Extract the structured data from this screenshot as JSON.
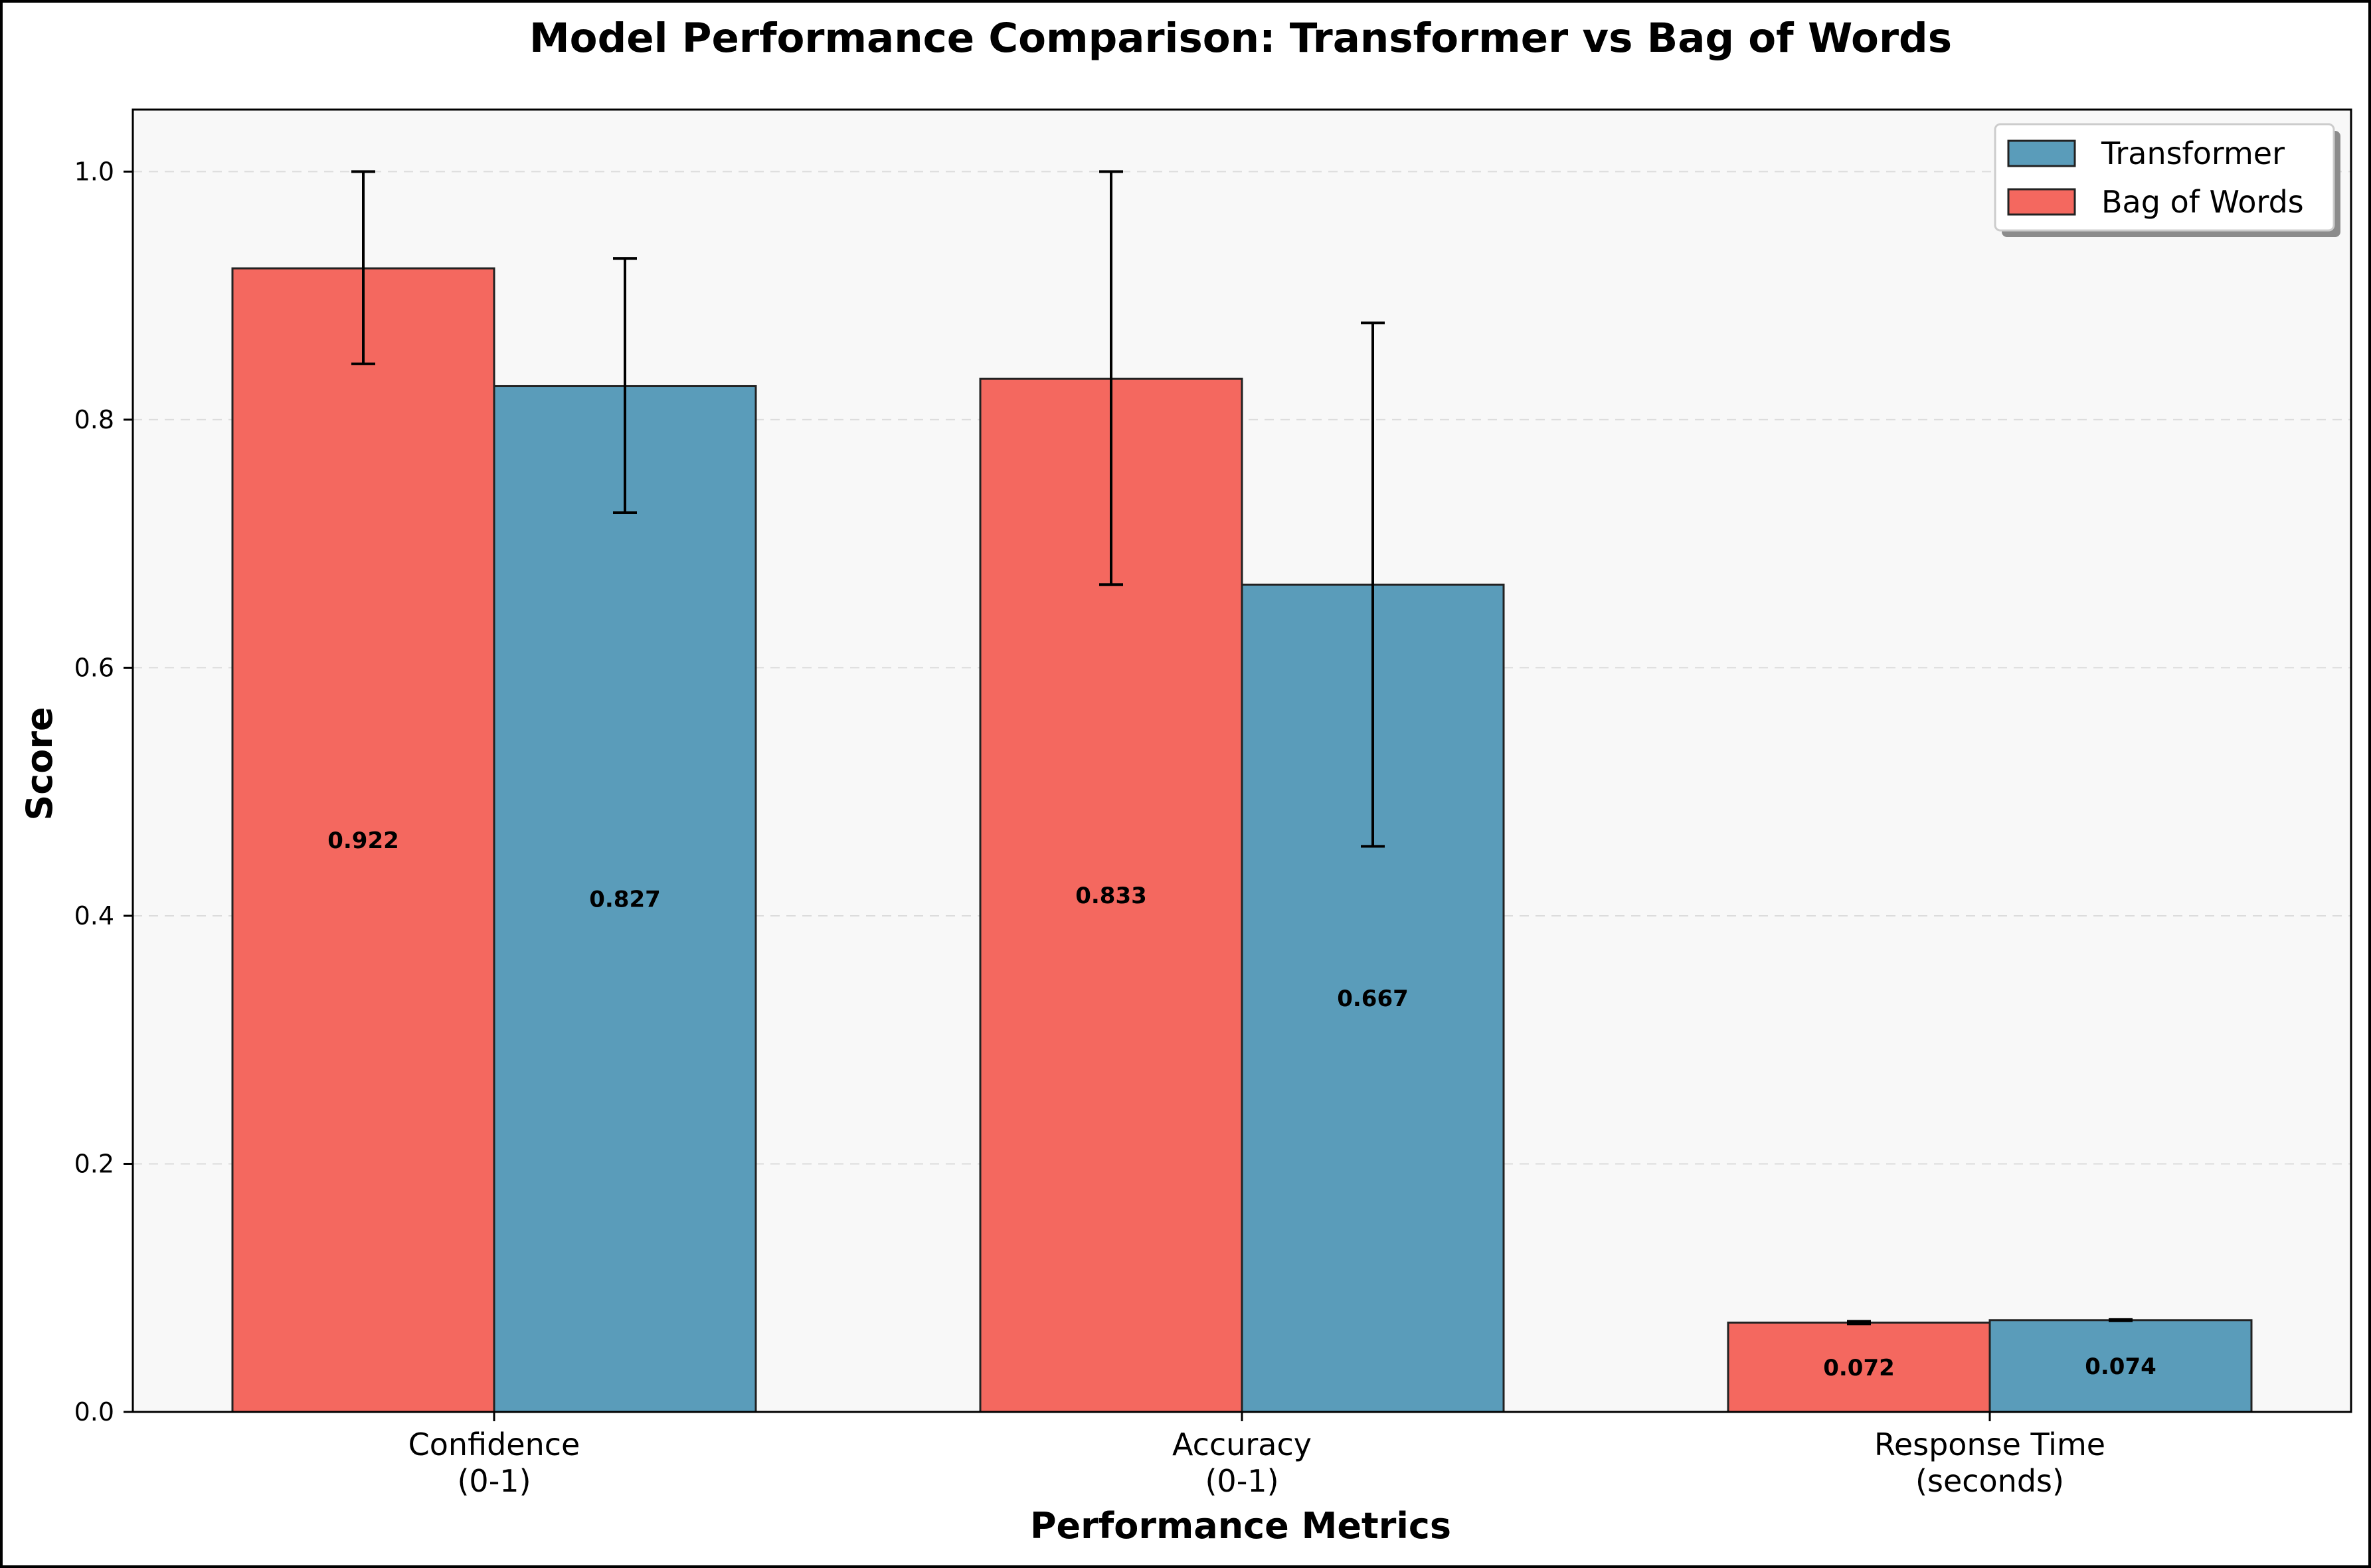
{
  "chart_data": {
    "type": "bar",
    "title": "Model Performance Comparison: Transformer vs Bag of Words",
    "xlabel": "Performance Metrics",
    "ylabel": "Score",
    "ylim": [
      0,
      1.05
    ],
    "yticks": [
      "0.0",
      "0.2",
      "0.4",
      "0.6",
      "0.8",
      "1.0"
    ],
    "categories": [
      [
        "Confidence",
        "(0-1)"
      ],
      [
        "Accuracy",
        "(0-1)"
      ],
      [
        "Response Time",
        "(seconds)"
      ]
    ],
    "series": [
      {
        "name": "Bag of Words",
        "color": "#f4685f",
        "values": [
          0.922,
          0.833,
          0.072
        ],
        "labels": [
          "0.922",
          "0.833",
          "0.072"
        ],
        "error_low": [
          0.845,
          0.667,
          0.071
        ],
        "error_high": [
          1.0,
          1.0,
          0.073
        ]
      },
      {
        "name": "Transformer",
        "color": "#5a9cba",
        "values": [
          0.827,
          0.667,
          0.074
        ],
        "labels": [
          "0.827",
          "0.667",
          "0.074"
        ],
        "error_low": [
          0.725,
          0.456,
          0.0735
        ],
        "error_high": [
          0.93,
          0.878,
          0.0745
        ]
      }
    ],
    "legend": {
      "position": "top-right",
      "order": [
        "Transformer",
        "Bag of Words"
      ]
    },
    "grid": "horizontal-dashed",
    "plot_background": "#f8f8f8"
  }
}
